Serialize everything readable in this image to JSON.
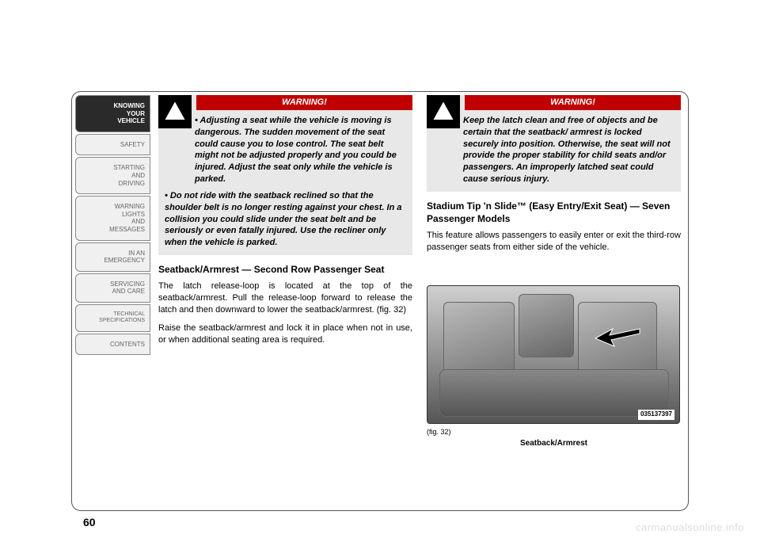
{
  "sidebar": {
    "tabs": [
      {
        "label": "KNOWING\nYOUR\nVEHICLE",
        "active": true
      },
      {
        "label": "SAFETY"
      },
      {
        "label": "STARTING\nAND\nDRIVING"
      },
      {
        "label": "WARNING\nLIGHTS\nAND\nMESSAGES"
      },
      {
        "label": "IN AN\nEMERGENCY"
      },
      {
        "label": "SERVICING\nAND CARE"
      },
      {
        "label": "TECHNICAL\nSPECIFICATIONS",
        "tech": true
      },
      {
        "label": "CONTENTS"
      }
    ]
  },
  "left": {
    "warning_label": "WARNING!",
    "warning_p1": "• Adjusting a seat while the vehicle is moving is dangerous. The sudden movement of the seat could cause you to lose control. The seat belt might not be adjusted properly and you could be injured. Adjust the seat only while the vehicle is parked.",
    "warning_p2": "• Do not ride with the seatback reclined so that the shoulder belt is no longer resting against your chest. In a collision you could slide under the seat belt and be seriously or even fatally injured. Use the recliner only when the vehicle is parked.",
    "head1": "Seatback/Armrest — Second Row Passenger Seat",
    "p1": "The latch release-loop is located at the top of the seatback/armrest. Pull the release-loop forward to release the latch and then downward to lower the seatback/armrest.  (fig. 32)",
    "p2": "Raise the seatback/armrest and lock it in place when not in use, or when additional seating area is required."
  },
  "right": {
    "warning_label": "WARNING!",
    "warning_p1": "Keep the latch clean and free of objects and be certain that the seatback/ armrest is locked securely into position. Otherwise, the seat will not provide the proper stability for child seats and/or passengers. An improperly latched seat could cause serious injury.",
    "head1": "Stadium Tip 'n Slide™ (Easy Entry/Exit Seat) — Seven Passenger Models",
    "p1": "This feature allows passengers to easily enter or exit the third-row passenger seats from either side of the vehicle.",
    "fig_id": "035137397",
    "fig_ref": "(fig. 32)",
    "fig_caption": "Seatback/Armrest"
  },
  "page_number": "60",
  "watermark": "carmanualsonline.info",
  "colors": {
    "warning_header_bg": "#c00000",
    "sidebar_active_bg": "#2a2a2a",
    "border": "#555555"
  }
}
